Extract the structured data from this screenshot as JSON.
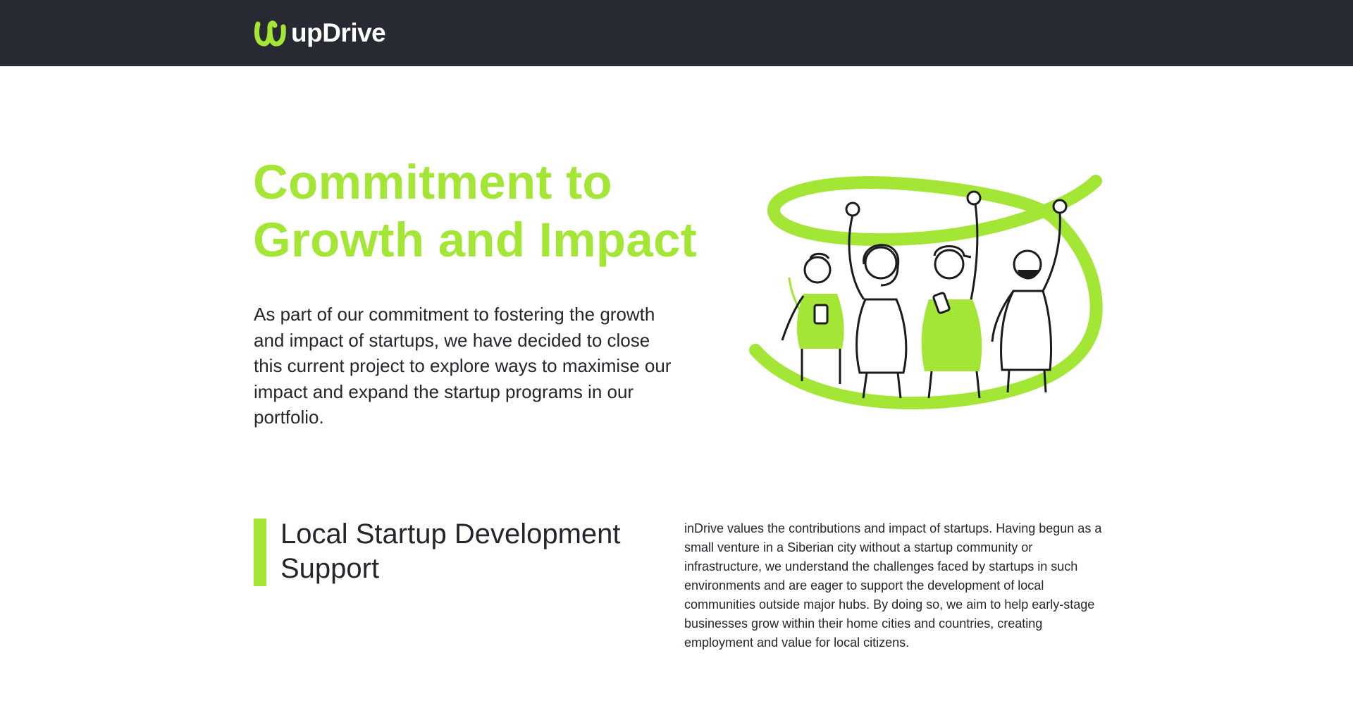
{
  "header": {
    "logo_text": "upDrive",
    "logo_icon": "updrive-logo-icon"
  },
  "hero": {
    "title": "Commitment to Growth and Impact",
    "text": "As part of our commitment to fostering the growth and impact of startups, we have decided to close this current project to explore ways to maximise our impact and expand the startup programs in our portfolio.",
    "illustration": "celebrating-people-illustration"
  },
  "section": {
    "title": "Local Startup Development Support",
    "text": "inDrive values the contributions and impact of startups. Having begun as a small venture in a Siberian city without a startup community or infrastructure, we understand the challenges faced by startups in such environments and are eager to support the development of local communities outside major hubs. By doing so, we aim to help early-stage businesses grow within their home cities and countries, creating employment and value for local citizens."
  },
  "colors": {
    "header_bg": "#272a33",
    "accent": "#a3e635",
    "text": "#23262d",
    "page_bg": "#ffffff"
  }
}
